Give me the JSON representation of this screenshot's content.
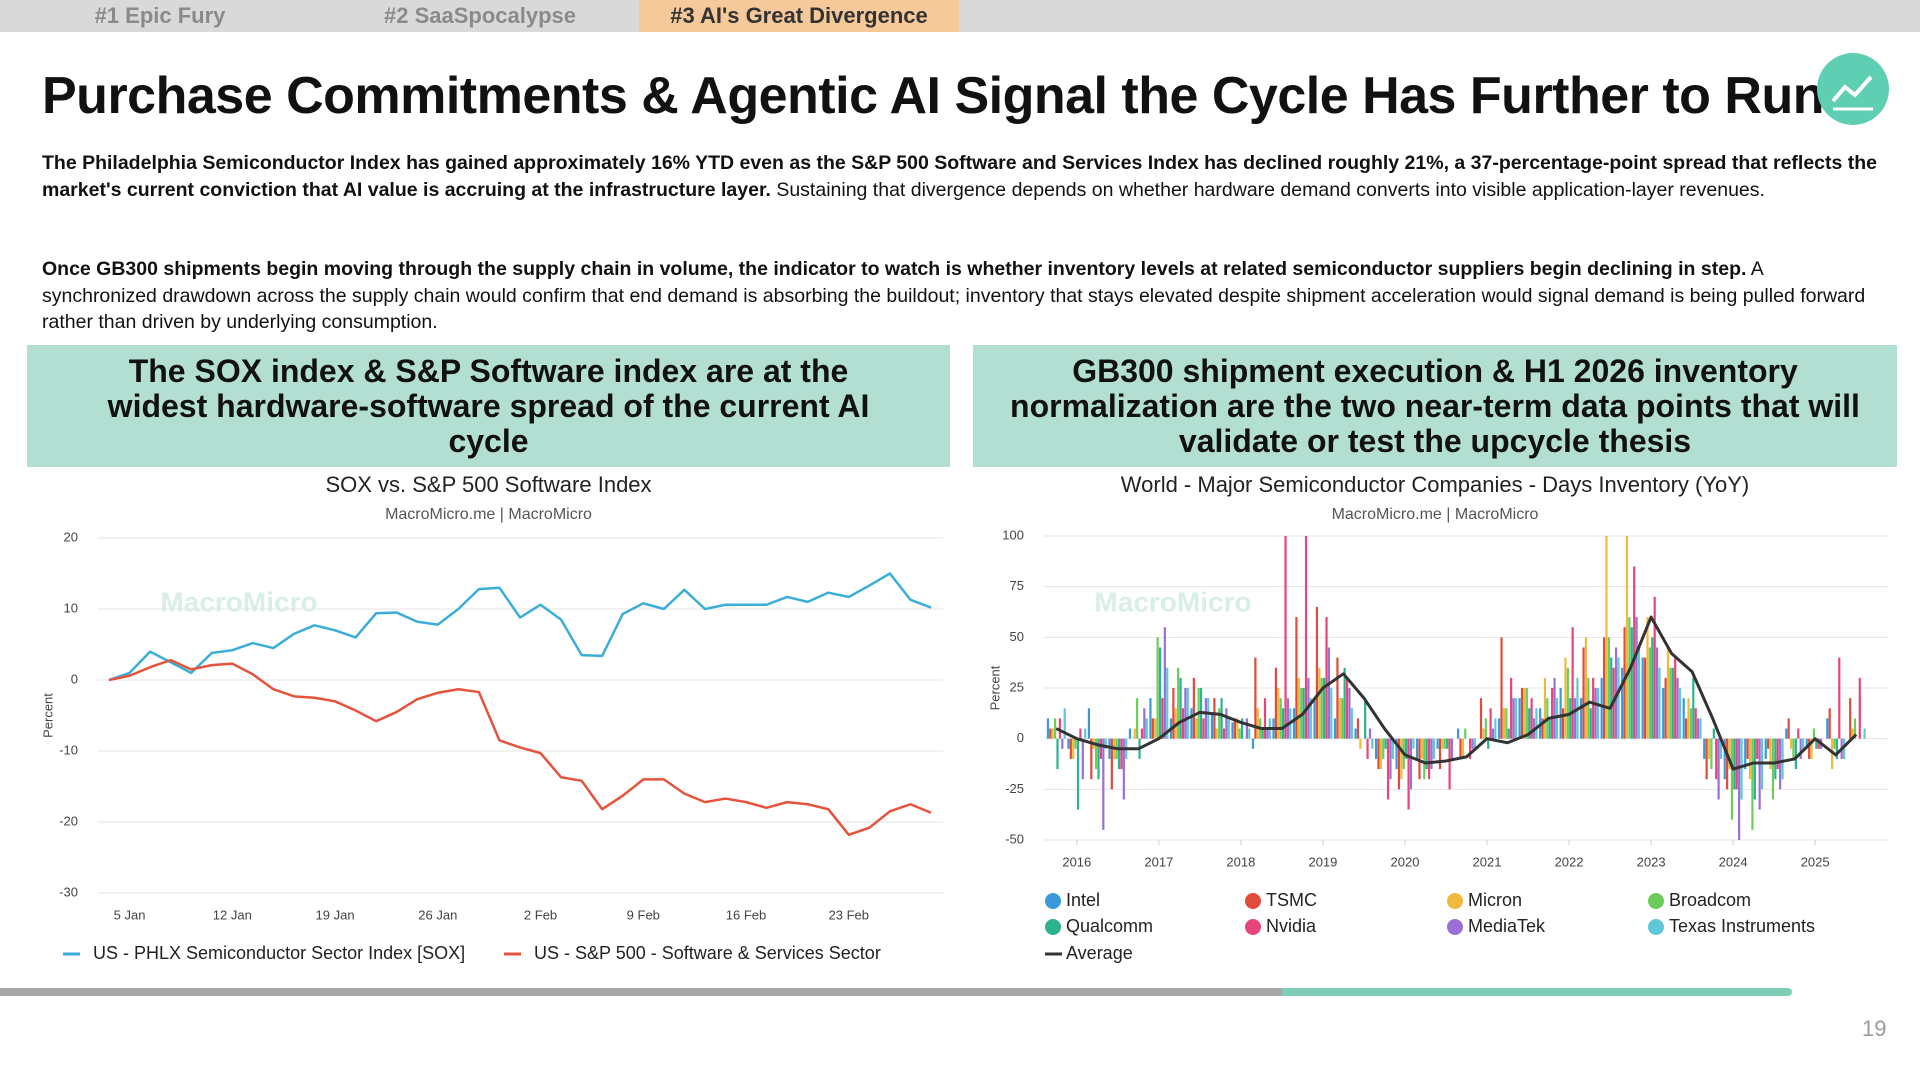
{
  "tabs": [
    "#1 Epic Fury",
    "#2 SaaSpocalypse",
    "#3 AI's Great Divergence"
  ],
  "title": "Purchase Commitments & Agentic AI Signal the Cycle Has Further to Run",
  "paragraphs": [
    {
      "bold": "The Philadelphia Semiconductor Index has gained approximately 16% YTD even as the S&P 500 Software and Services Index has declined roughly 21%, a 37-percentage-point spread that reflects the market's current conviction that AI value is accruing at the infrastructure layer.",
      "text": "Sustaining that divergence depends on whether hardware demand converts into visible application-layer revenues."
    },
    {
      "bold": "Once GB300 shipments begin moving through the supply chain in volume, the indicator to watch is whether inventory levels at related semiconductor suppliers begin declining in step.",
      "text": "A synchronized drawdown across the supply chain would confirm that end demand is absorbing the buildout; inventory that stays elevated despite shipment acceleration would signal demand is being pulled forward rather than driven by underlying consumption."
    }
  ],
  "panels": [
    {
      "heading": "The SOX index & S&P Software index are at the widest hardware-software spread of the current AI cycle"
    },
    {
      "heading": "GB300 shipment execution & H1 2026 inventory normalization are the two near-term data points that will validate or test the upcycle thesis"
    }
  ],
  "chart_data": [
    {
      "type": "line",
      "title": "SOX vs. S&P 500 Software Index",
      "subtitle": "MacroMicro.me | MacroMicro",
      "watermark": "MacroMicro",
      "y_label": "Percent",
      "categories": [
        null,
        "5 Jan",
        null,
        null,
        null,
        null,
        "12 Jan",
        null,
        null,
        null,
        null,
        "19 Jan",
        null,
        null,
        null,
        null,
        "26 Jan",
        null,
        null,
        null,
        null,
        "2 Feb",
        null,
        null,
        null,
        null,
        "9 Feb",
        null,
        null,
        null,
        null,
        "16 Feb",
        null,
        null,
        null,
        null,
        "23 Feb",
        null,
        null,
        null,
        null
      ],
      "series": [
        {
          "name": "US - PHLX Semiconductor Sector Index [SOX]",
          "color": "#3aaed8",
          "values": [
            0,
            1,
            4,
            2.5,
            1,
            3.8,
            4.2,
            5.2,
            4.5,
            6.5,
            7.7,
            7,
            6,
            9.4,
            9.5,
            8.2,
            7.8,
            10,
            12.8,
            13,
            8.8,
            10.6,
            8.5,
            3.5,
            3.4,
            9.3,
            10.8,
            10,
            12.7,
            10,
            10.6,
            10.6,
            10.6,
            11.7,
            11,
            12.3,
            11.7,
            13.3,
            15,
            11.3,
            10.2
          ]
        },
        {
          "name": "US - S&P 500 - Software & Services Sector",
          "color": "#e5533c",
          "values": [
            0,
            0.6,
            1.8,
            2.8,
            1.5,
            2.1,
            2.3,
            0.8,
            -1.3,
            -2.3,
            -2.5,
            -3,
            -4.3,
            -5.8,
            -4.5,
            -2.7,
            -1.8,
            -1.3,
            -1.7,
            -8.5,
            -9.5,
            -10.3,
            -13.7,
            -14.2,
            -18.2,
            -16.3,
            -14,
            -14,
            -16,
            -17.2,
            -16.7,
            -17.2,
            -18,
            -17.2,
            -17.5,
            -18.2,
            -21.8,
            -20.8,
            -18.5,
            -17.5,
            -18.7
          ]
        }
      ],
      "ylim": [
        -30,
        20
      ],
      "yticks": [
        -30,
        -20,
        -10,
        0,
        10,
        20
      ],
      "grid": true
    },
    {
      "type": "bar",
      "title": "World - Major Semiconductor Companies - Days Inventory (YoY)",
      "subtitle": "MacroMicro.me | MacroMicro",
      "watermark": "MacroMicro",
      "y_label": "Percent",
      "x": [
        2015.75,
        2016,
        2016.25,
        2016.5,
        2016.75,
        2017,
        2017.25,
        2017.5,
        2017.75,
        2018,
        2018.25,
        2018.5,
        2018.75,
        2019,
        2019.25,
        2019.5,
        2019.75,
        2020,
        2020.25,
        2020.5,
        2020.75,
        2021,
        2021.25,
        2021.5,
        2021.75,
        2022,
        2022.25,
        2022.5,
        2022.75,
        2023,
        2023.25,
        2023.5,
        2023.75,
        2024,
        2024.25,
        2024.5,
        2024.75,
        2025,
        2025.25,
        2025.5
      ],
      "series": [
        {
          "name": "Intel",
          "color": "#3a9ad9",
          "values": [
            10,
            -5,
            15,
            -10,
            5,
            20,
            10,
            15,
            12,
            8,
            -5,
            10,
            15,
            20,
            10,
            5,
            -10,
            -15,
            -10,
            -5,
            5,
            0,
            10,
            20,
            15,
            25,
            20,
            30,
            35,
            40,
            25,
            20,
            -10,
            -20,
            -15,
            -10,
            5,
            -5,
            10,
            0
          ]
        },
        {
          "name": "TSMC",
          "color": "#e04b3c",
          "values": [
            5,
            -10,
            -20,
            -25,
            0,
            10,
            25,
            30,
            20,
            10,
            40,
            35,
            60,
            65,
            40,
            10,
            -15,
            -25,
            -20,
            -15,
            -10,
            20,
            50,
            25,
            10,
            15,
            45,
            50,
            55,
            40,
            30,
            10,
            -20,
            -25,
            -10,
            -5,
            10,
            -10,
            15,
            20
          ]
        },
        {
          "name": "Micron",
          "color": "#f0b93b",
          "values": [
            5,
            -10,
            -5,
            -10,
            5,
            10,
            15,
            10,
            5,
            10,
            15,
            25,
            30,
            35,
            20,
            -5,
            -15,
            -20,
            -10,
            -5,
            -10,
            5,
            15,
            25,
            30,
            40,
            50,
            100,
            100,
            60,
            45,
            20,
            -10,
            -15,
            -20,
            -15,
            -5,
            -10,
            -15,
            5
          ]
        },
        {
          "name": "Broadcom",
          "color": "#6ccc5c",
          "values": [
            10,
            -5,
            -15,
            -10,
            20,
            50,
            35,
            25,
            15,
            5,
            10,
            20,
            25,
            30,
            20,
            0,
            -10,
            -15,
            -20,
            -5,
            5,
            10,
            15,
            25,
            20,
            35,
            30,
            50,
            60,
            45,
            35,
            15,
            -15,
            -40,
            -45,
            -30,
            -10,
            5,
            -5,
            10
          ]
        },
        {
          "name": "Qualcomm",
          "color": "#2bb38f",
          "values": [
            -15,
            -35,
            -20,
            -15,
            -10,
            45,
            30,
            25,
            20,
            10,
            5,
            15,
            25,
            30,
            35,
            20,
            -5,
            -10,
            -15,
            -5,
            0,
            -5,
            5,
            15,
            10,
            20,
            15,
            40,
            55,
            50,
            35,
            30,
            5,
            -25,
            -30,
            -20,
            -15,
            -5,
            -10,
            0
          ]
        },
        {
          "name": "Nvidia",
          "color": "#e8457a",
          "values": [
            10,
            5,
            -10,
            -15,
            5,
            20,
            15,
            10,
            5,
            0,
            20,
            100,
            100,
            60,
            30,
            -10,
            -30,
            -35,
            -20,
            -25,
            -10,
            15,
            30,
            20,
            25,
            55,
            30,
            35,
            85,
            70,
            40,
            15,
            -20,
            -25,
            -10,
            -15,
            5,
            -5,
            40,
            30
          ]
        },
        {
          "name": "MediaTek",
          "color": "#9b6fd6",
          "values": [
            -5,
            -20,
            -45,
            -30,
            15,
            55,
            25,
            20,
            15,
            10,
            5,
            20,
            30,
            45,
            25,
            5,
            -20,
            -25,
            -15,
            -10,
            -5,
            5,
            20,
            10,
            30,
            20,
            25,
            45,
            60,
            45,
            30,
            10,
            -30,
            -50,
            -35,
            -25,
            -10,
            -5,
            -10,
            0
          ]
        },
        {
          "name": "Texas Instruments",
          "color": "#5ec8d8",
          "values": [
            15,
            5,
            -5,
            -10,
            10,
            35,
            25,
            20,
            10,
            5,
            10,
            15,
            20,
            25,
            15,
            -5,
            -10,
            -5,
            -10,
            0,
            -5,
            10,
            20,
            15,
            20,
            30,
            25,
            40,
            45,
            35,
            25,
            10,
            -10,
            -30,
            -25,
            -20,
            -5,
            0,
            -10,
            5
          ]
        },
        {
          "name": "Average",
          "color": "#333333",
          "type": "line",
          "values": [
            5,
            0,
            -3,
            -5,
            -5,
            0,
            8,
            13,
            12,
            8,
            5,
            5,
            12,
            25,
            32,
            20,
            5,
            -8,
            -12,
            -11,
            -9,
            0,
            -2,
            2,
            10,
            12,
            18,
            15,
            35,
            60,
            42,
            33,
            10,
            -15,
            -12,
            -12,
            -10,
            0,
            -8,
            2
          ]
        }
      ],
      "xlim": [
        2015.6,
        2025.9
      ],
      "xticks": [
        2016,
        2017,
        2018,
        2019,
        2020,
        2021,
        2022,
        2023,
        2024,
        2025
      ],
      "ylim": [
        -50,
        100
      ],
      "yticks": [
        -50,
        -25,
        0,
        25,
        50,
        75,
        100
      ],
      "grid": true
    }
  ],
  "page_number": "19"
}
